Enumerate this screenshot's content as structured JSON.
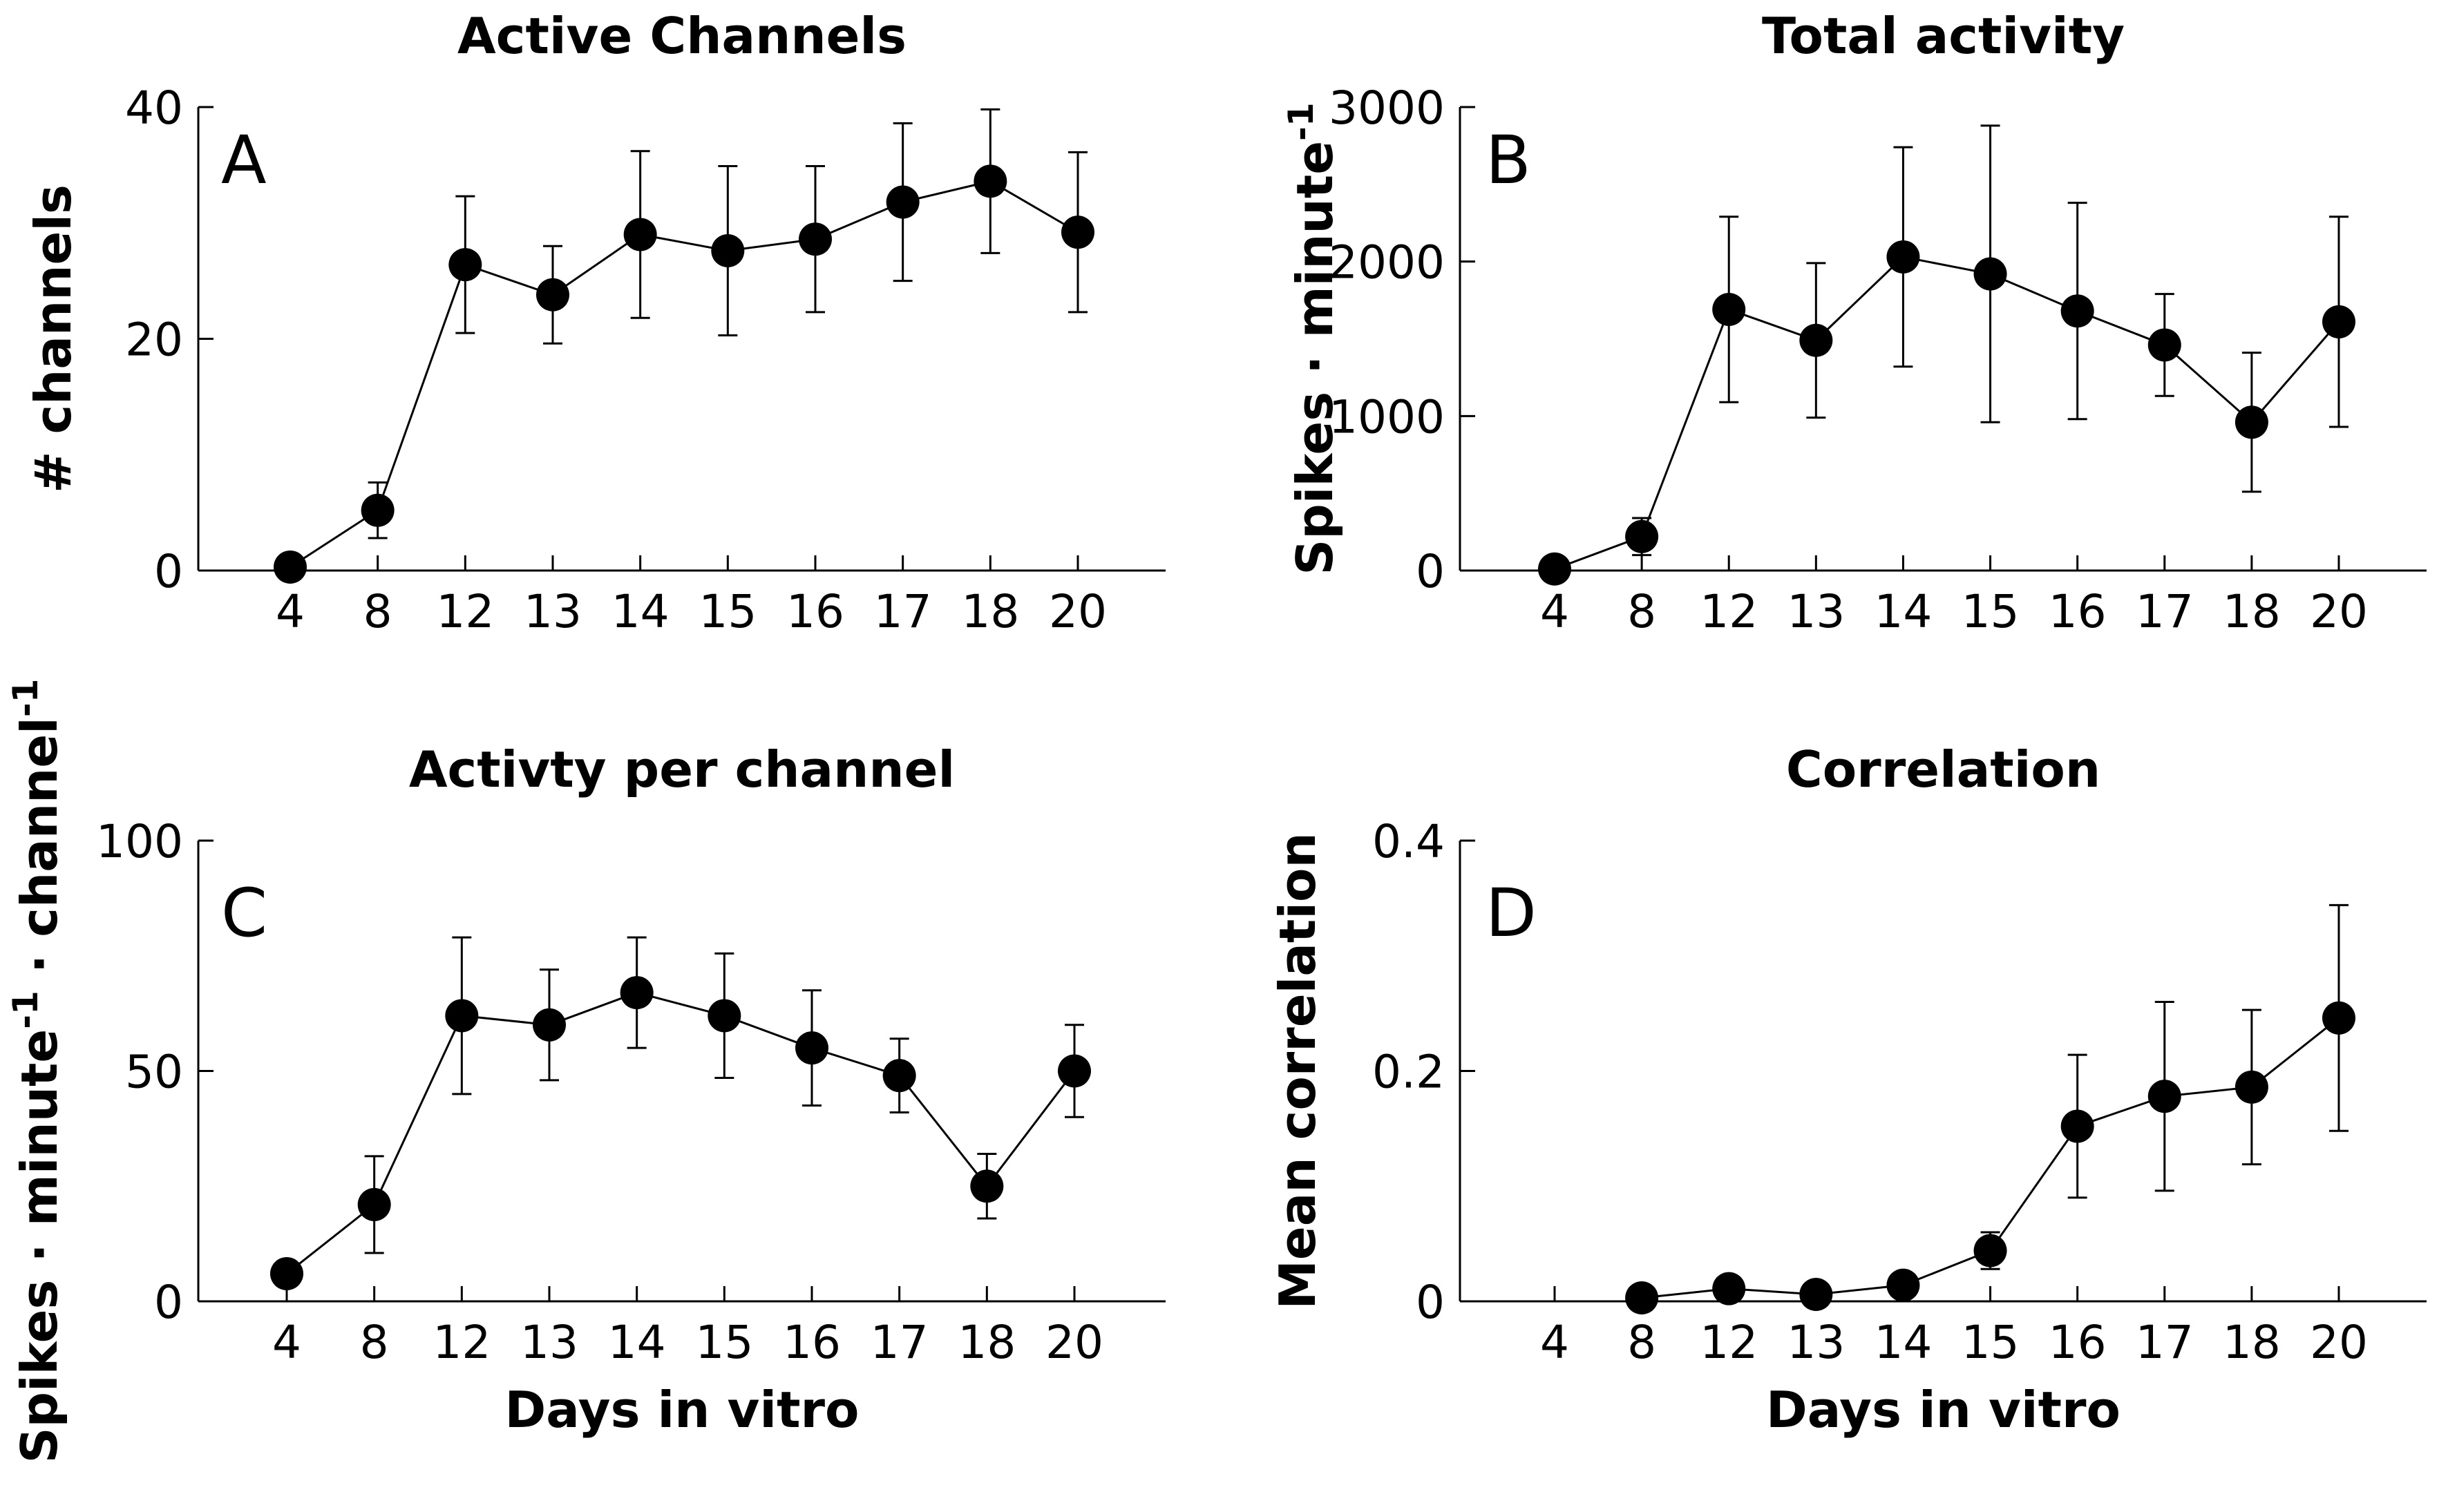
{
  "chart_data": [
    {
      "type": "line",
      "panel_label": "A",
      "title": "Active Channels",
      "xlabel": "",
      "ylabel": "# channels",
      "ylabel_superscripts": [],
      "categories": [
        "4",
        "8",
        "12",
        "13",
        "14",
        "15",
        "16",
        "17",
        "18",
        "20"
      ],
      "yticks": [
        "0",
        "20",
        "40"
      ],
      "ylim": [
        0,
        40
      ],
      "series": [
        {
          "values": [
            0.3,
            5.2,
            26.4,
            23.8,
            29.0,
            27.6,
            28.6,
            31.8,
            33.6,
            29.2
          ],
          "error": [
            0.5,
            2.4,
            5.9,
            4.2,
            7.2,
            7.3,
            6.3,
            6.8,
            6.2,
            6.9
          ]
        }
      ],
      "color": "#000000",
      "grid": false
    },
    {
      "type": "line",
      "panel_label": "B",
      "title": "Total activity",
      "xlabel": "",
      "ylabel": "Spikes · minute",
      "ylabel_superscripts": [
        "-1"
      ],
      "categories": [
        "4",
        "8",
        "12",
        "13",
        "14",
        "15",
        "16",
        "17",
        "18",
        "20"
      ],
      "yticks": [
        "0",
        "1000",
        "2000",
        "3000"
      ],
      "ylim": [
        0,
        3000
      ],
      "series": [
        {
          "values": [
            10,
            220,
            1690,
            1490,
            2030,
            1920,
            1680,
            1460,
            960,
            1610
          ],
          "error": [
            15,
            120,
            600,
            500,
            710,
            960,
            700,
            330,
            450,
            680
          ]
        }
      ],
      "color": "#000000",
      "grid": false
    },
    {
      "type": "line",
      "panel_label": "C",
      "title": "Activty per channel",
      "xlabel": "Days in vitro",
      "ylabel": "Spikes · minute · channel",
      "ylabel_superscripts": [
        "-1",
        "-1"
      ],
      "categories": [
        "4",
        "8",
        "12",
        "13",
        "14",
        "15",
        "16",
        "17",
        "18",
        "20"
      ],
      "yticks": [
        "0",
        "50",
        "100"
      ],
      "ylim": [
        0,
        100
      ],
      "series": [
        {
          "values": [
            6,
            21,
            62,
            60,
            67,
            62,
            55,
            49,
            25,
            50
          ],
          "error": [
            1,
            10.5,
            17,
            12,
            12,
            13.5,
            12.5,
            8,
            7,
            10
          ]
        }
      ],
      "color": "#000000",
      "grid": false
    },
    {
      "type": "line",
      "panel_label": "D",
      "title": "Correlation",
      "xlabel": "Days in vitro",
      "ylabel": "Mean correlation",
      "ylabel_superscripts": [],
      "categories": [
        "4",
        "8",
        "12",
        "13",
        "14",
        "15",
        "16",
        "17",
        "18",
        "20"
      ],
      "yticks": [
        "0",
        "0.2",
        "0.4"
      ],
      "ylim": [
        0,
        0.4
      ],
      "series": [
        {
          "values": [
            null,
            0.003,
            0.011,
            0.006,
            0.014,
            0.044,
            0.152,
            0.178,
            0.186,
            0.246
          ],
          "error": [
            null,
            0,
            0,
            0,
            0,
            0.016,
            0.062,
            0.082,
            0.067,
            0.098
          ]
        }
      ],
      "color": "#000000",
      "grid": false
    }
  ]
}
